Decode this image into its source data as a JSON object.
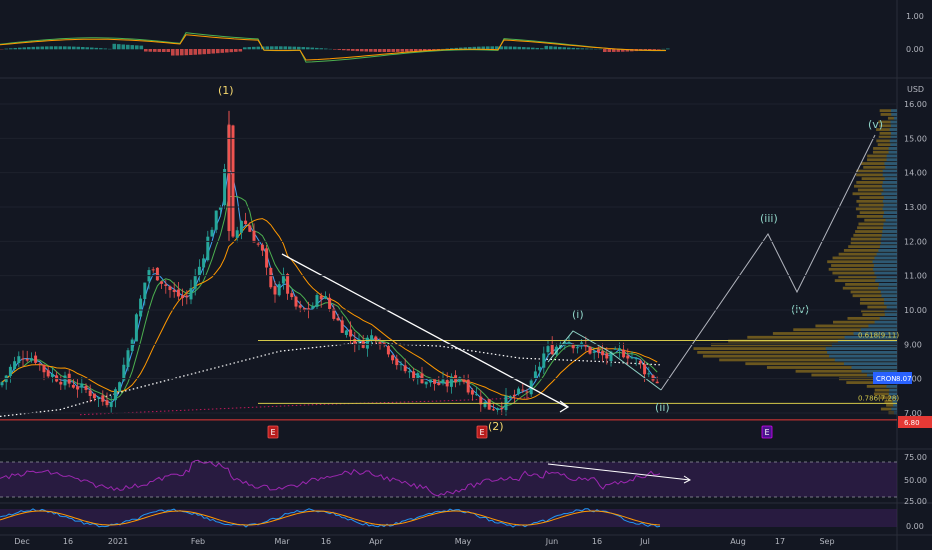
{
  "chart_data": {
    "type": "candlestick",
    "symbol": "CRON",
    "currency": "USD",
    "last_price": "8.07",
    "support_price": "6.80",
    "y_ticks": [
      "16.00",
      "15.00",
      "14.00",
      "13.00",
      "12.00",
      "11.00",
      "10.00",
      "9.00",
      "8.00",
      "7.00"
    ],
    "x_ticks": [
      "Dec",
      "16",
      "2021",
      "Feb",
      "Mar",
      "16",
      "Apr",
      "May",
      "Jun",
      "16",
      "Jul",
      "Aug",
      "17",
      "Sep"
    ],
    "price_range": [
      6.5,
      16.3
    ],
    "fib_levels": [
      {
        "label": "0.618(9.11)",
        "value": 9.11
      },
      {
        "label": "0.786(7.28)",
        "value": 7.28
      }
    ],
    "wave_labels": {
      "major": [
        "(1)",
        "(2)"
      ],
      "minor": [
        "(i)",
        "(ii)",
        "(iii)",
        "(iv)",
        "(v)"
      ]
    },
    "earnings_markers": [
      "E",
      "E",
      "E"
    ],
    "macd_axis": [
      "1.00",
      "0.00"
    ],
    "rsi_axis": [
      "75.00",
      "50.00",
      "25.00"
    ],
    "stoch_axis": [
      "0.00"
    ],
    "colors": {
      "up": "#26a69a",
      "down": "#ef5350",
      "fib_line": "#d4c84a",
      "support_line": "#e53935",
      "wave_label_major": "#f5d76e",
      "wave_label_minor": "#8fd3c6",
      "rsi": "#9c27b0",
      "volume_profile": "#8a6d1e"
    }
  }
}
